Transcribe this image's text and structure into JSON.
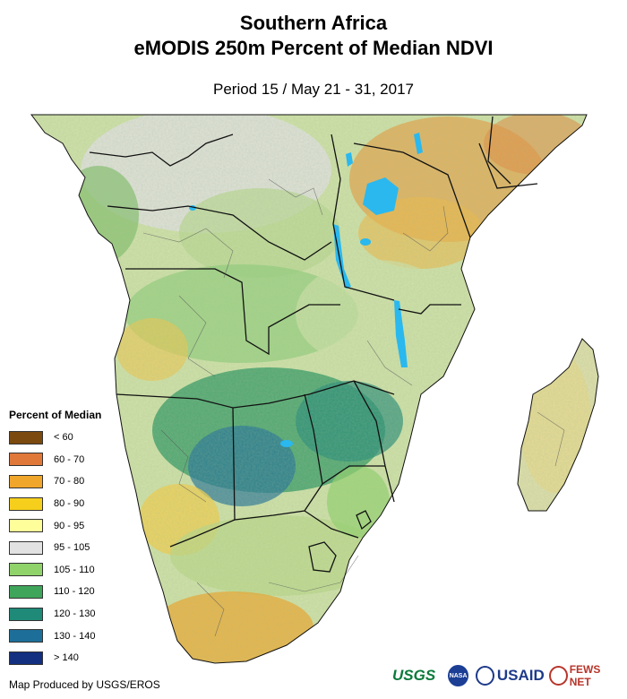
{
  "title_line1": "Southern Africa",
  "title_line2": "eMODIS 250m Percent of Median NDVI",
  "period": "Period 15 / May 21 - 31, 2017",
  "legend": {
    "title": "Percent of Median",
    "items": [
      {
        "label": "< 60",
        "color": "#7a4a0e"
      },
      {
        "label": "60 - 70",
        "color": "#e0783a"
      },
      {
        "label": "70 - 80",
        "color": "#f0a62a"
      },
      {
        "label": "80 - 90",
        "color": "#f6cf1c"
      },
      {
        "label": "90 - 95",
        "color": "#fefe9a"
      },
      {
        "label": "95 - 105",
        "color": "#e2e2e2"
      },
      {
        "label": "105 - 110",
        "color": "#8fd36a"
      },
      {
        "label": "110 - 120",
        "color": "#3fa55a"
      },
      {
        "label": "120 - 130",
        "color": "#1f8a78"
      },
      {
        "label": "130 - 140",
        "color": "#1d6f99"
      },
      {
        "label": "> 140",
        "color": "#122f80"
      }
    ]
  },
  "credit": "Map Produced by USGS/EROS",
  "logos": {
    "usgs": "USGS",
    "nasa": "NASA",
    "usaid": "USAID",
    "fews": "FEWS NET"
  },
  "colors": {
    "water": "#2ab8ee",
    "ocean": "#ffffff",
    "border": "#111111"
  }
}
